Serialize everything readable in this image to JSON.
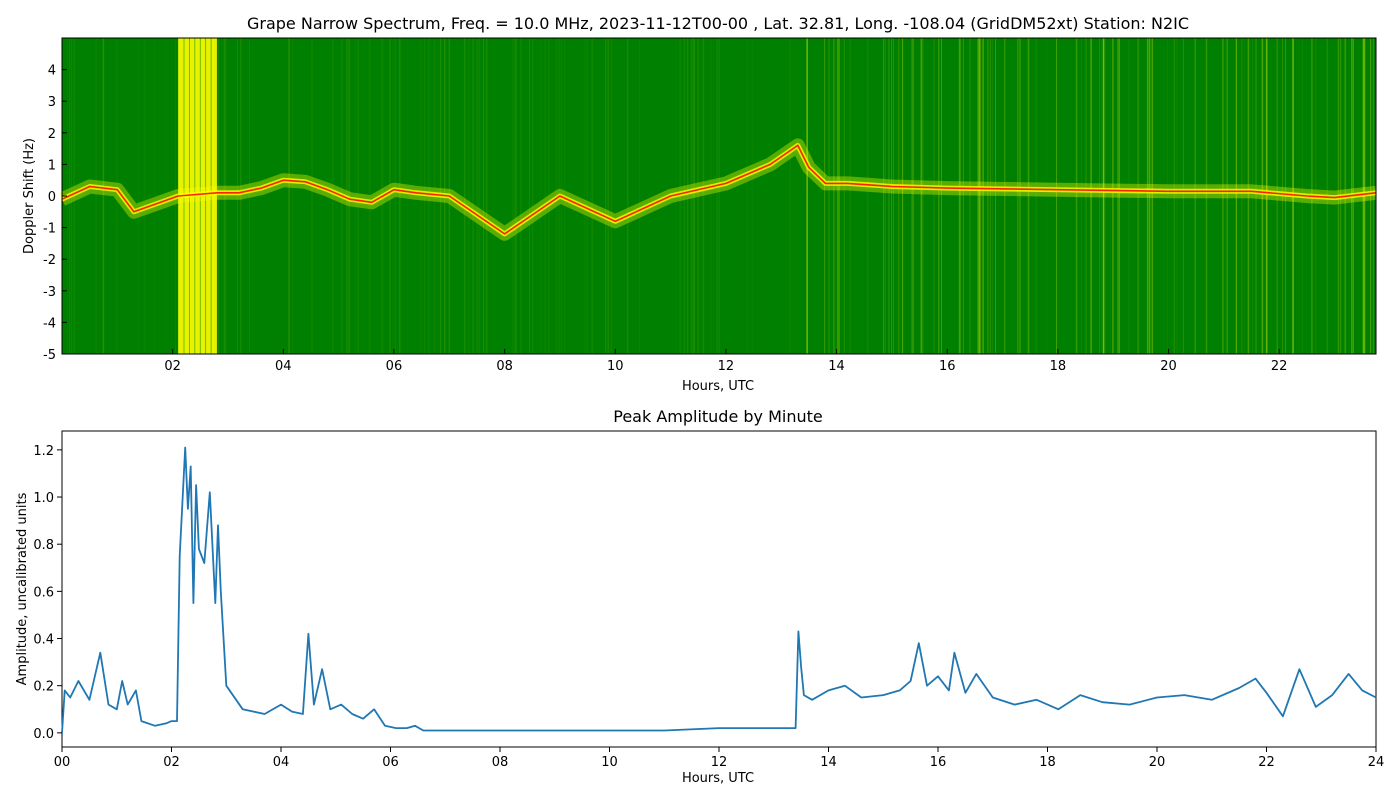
{
  "chart_data": [
    {
      "type": "heatmap",
      "title": "Grape Narrow Spectrum, Freq. = 10.0 MHz, 2023-11-12T00-00 , Lat.  32.81, Long. -108.04 (GridDM52xt) Station: N2IC",
      "xlabel": "Hours, UTC",
      "ylabel": "Doppler Shift (Hz)",
      "xlim": [
        0,
        23.75
      ],
      "ylim": [
        -5,
        5
      ],
      "xticks": [
        "02",
        "04",
        "06",
        "08",
        "10",
        "12",
        "14",
        "16",
        "18",
        "20",
        "22"
      ],
      "yticks": [
        "-5",
        "-4",
        "-3",
        "-2",
        "-1",
        "0",
        "1",
        "2",
        "3",
        "4"
      ],
      "colormap": [
        "#008000",
        "#ffff00",
        "#ff0000"
      ],
      "dominant_doppler_trace_hz": {
        "x": [
          0.0,
          0.5,
          1.0,
          1.3,
          2.1,
          2.8,
          3.2,
          3.6,
          4.0,
          4.4,
          4.8,
          5.2,
          5.6,
          6.0,
          6.4,
          7.0,
          8.0,
          9.0,
          10.0,
          11.0,
          12.0,
          12.8,
          13.3,
          13.5,
          13.8,
          14.2,
          14.6,
          15.0,
          16.0,
          18.0,
          20.0,
          21.5,
          22.5,
          23.0,
          23.75
        ],
        "y": [
          -0.1,
          0.3,
          0.2,
          -0.5,
          0.0,
          0.1,
          0.1,
          0.25,
          0.5,
          0.45,
          0.2,
          -0.1,
          -0.2,
          0.2,
          0.1,
          0.0,
          -1.2,
          0.0,
          -0.8,
          0.0,
          0.4,
          1.0,
          1.6,
          0.9,
          0.4,
          0.4,
          0.35,
          0.3,
          0.25,
          0.2,
          0.15,
          0.15,
          0.0,
          -0.05,
          0.1
        ]
      },
      "wideband_burst_hours": [
        2.1,
        2.8
      ]
    },
    {
      "type": "line",
      "title": "Peak Amplitude by Minute",
      "xlabel": "Hours, UTC",
      "ylabel": "Amplitude, uncalibrated units",
      "xlim": [
        0,
        24
      ],
      "ylim": [
        -0.06,
        1.28
      ],
      "xticks": [
        "00",
        "02",
        "04",
        "06",
        "08",
        "10",
        "12",
        "14",
        "16",
        "18",
        "20",
        "22",
        "24"
      ],
      "yticks": [
        "0.0",
        "0.2",
        "0.4",
        "0.6",
        "0.8",
        "1.0",
        "1.2"
      ],
      "series": [
        {
          "color": "#1f77b4",
          "x": [
            0,
            0.05,
            0.15,
            0.3,
            0.5,
            0.7,
            0.85,
            1.0,
            1.1,
            1.2,
            1.35,
            1.45,
            1.7,
            1.9,
            2.0,
            2.1,
            2.15,
            2.25,
            2.3,
            2.35,
            2.4,
            2.45,
            2.5,
            2.55,
            2.6,
            2.7,
            2.8,
            2.85,
            2.9,
            3.0,
            3.3,
            3.7,
            4.0,
            4.2,
            4.4,
            4.5,
            4.6,
            4.75,
            4.9,
            5.1,
            5.3,
            5.5,
            5.7,
            5.9,
            6.1,
            6.3,
            6.45,
            6.6,
            7.0,
            8.0,
            9.0,
            10.0,
            11.0,
            12.0,
            12.5,
            13.0,
            13.4,
            13.45,
            13.5,
            13.55,
            13.7,
            14.0,
            14.3,
            14.6,
            15.0,
            15.3,
            15.5,
            15.65,
            15.8,
            16.0,
            16.2,
            16.3,
            16.5,
            16.7,
            17.0,
            17.4,
            17.8,
            18.2,
            18.6,
            19.0,
            19.5,
            20.0,
            20.5,
            21.0,
            21.5,
            21.8,
            22.0,
            22.3,
            22.6,
            22.9,
            23.2,
            23.5,
            23.75,
            24.0
          ],
          "values": [
            0.0,
            0.18,
            0.15,
            0.22,
            0.14,
            0.34,
            0.12,
            0.1,
            0.22,
            0.12,
            0.18,
            0.05,
            0.03,
            0.04,
            0.05,
            0.05,
            0.75,
            1.21,
            0.95,
            1.13,
            0.55,
            1.05,
            0.78,
            0.75,
            0.72,
            1.02,
            0.55,
            0.88,
            0.6,
            0.2,
            0.1,
            0.08,
            0.12,
            0.09,
            0.08,
            0.42,
            0.12,
            0.27,
            0.1,
            0.12,
            0.08,
            0.06,
            0.1,
            0.03,
            0.02,
            0.02,
            0.03,
            0.01,
            0.01,
            0.01,
            0.01,
            0.01,
            0.01,
            0.02,
            0.02,
            0.02,
            0.02,
            0.43,
            0.28,
            0.16,
            0.14,
            0.18,
            0.2,
            0.15,
            0.16,
            0.18,
            0.22,
            0.38,
            0.2,
            0.24,
            0.18,
            0.34,
            0.17,
            0.25,
            0.15,
            0.12,
            0.14,
            0.1,
            0.16,
            0.13,
            0.12,
            0.15,
            0.16,
            0.14,
            0.19,
            0.23,
            0.17,
            0.07,
            0.27,
            0.11,
            0.16,
            0.25,
            0.18,
            0.15
          ]
        }
      ]
    }
  ]
}
